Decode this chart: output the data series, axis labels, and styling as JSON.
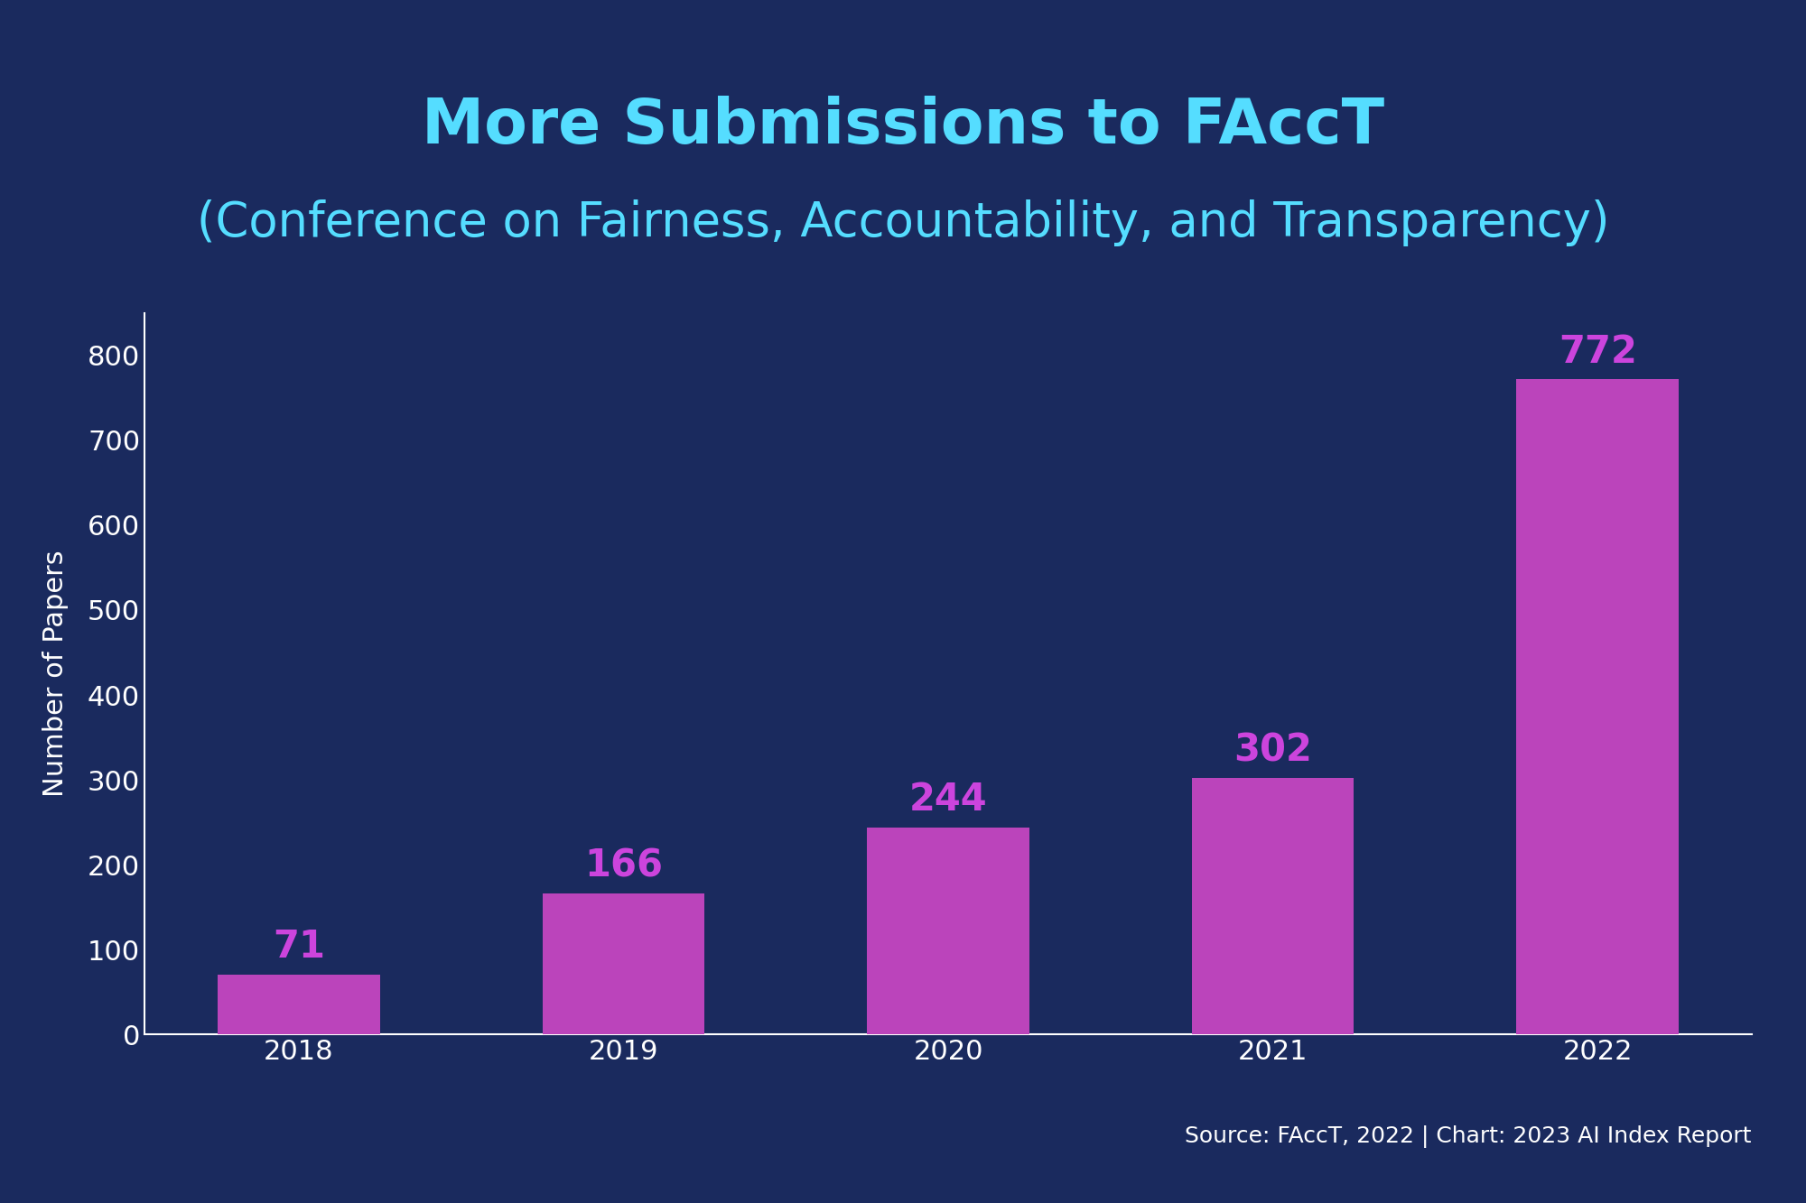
{
  "title_line1": "More Submissions to FAccT",
  "title_line2": "(Conference on Fairness, Accountability, and Transparency)",
  "years": [
    "2018",
    "2019",
    "2020",
    "2021",
    "2022"
  ],
  "values": [
    71,
    166,
    244,
    302,
    772
  ],
  "bar_color": "#BB44BB",
  "background_color": "#1a2a5e",
  "title_color1": "#55DDFF",
  "title_color2": "#55DDFF",
  "axis_label_color": "#ffffff",
  "tick_label_color": "#ffffff",
  "value_label_color": "#CC44DD",
  "ylabel": "Number of Papers",
  "ylim": [
    0,
    850
  ],
  "yticks": [
    0,
    100,
    200,
    300,
    400,
    500,
    600,
    700,
    800
  ],
  "source_text": "Source: FAccT, 2022 | Chart: 2023 AI Index Report",
  "source_color": "#ffffff",
  "spine_color": "#ffffff"
}
